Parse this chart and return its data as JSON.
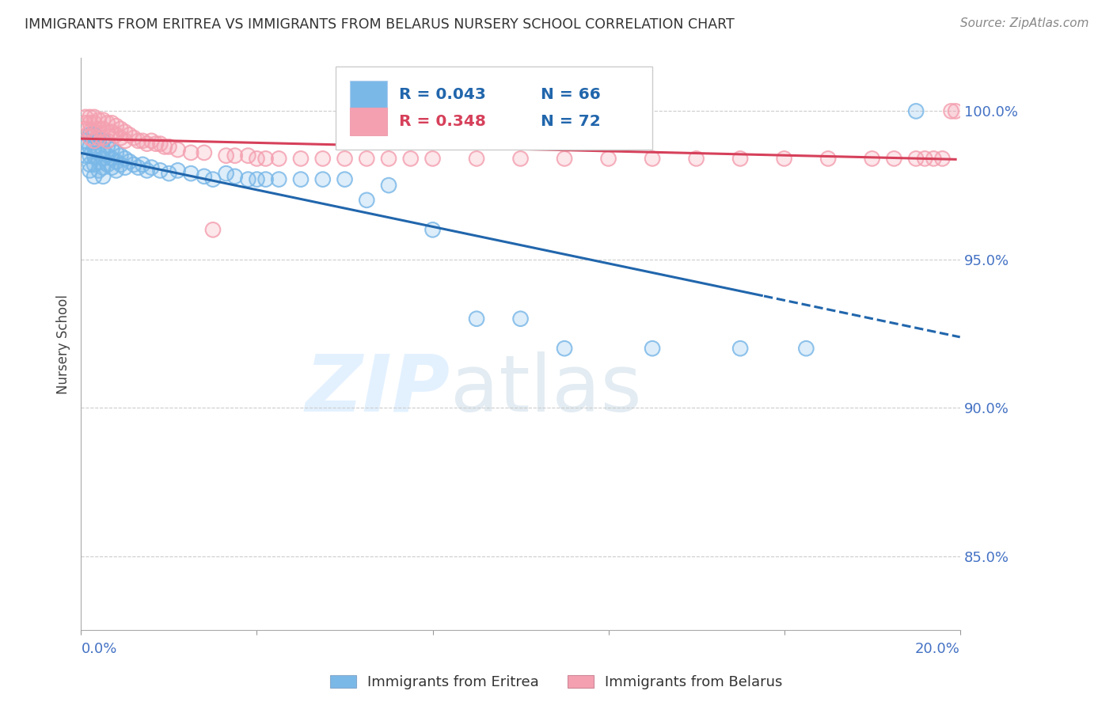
{
  "title": "IMMIGRANTS FROM ERITREA VS IMMIGRANTS FROM BELARUS NURSERY SCHOOL CORRELATION CHART",
  "source": "Source: ZipAtlas.com",
  "ylabel": "Nursery School",
  "ytick_labels": [
    "85.0%",
    "90.0%",
    "95.0%",
    "100.0%"
  ],
  "ytick_values": [
    0.85,
    0.9,
    0.95,
    1.0
  ],
  "xlim": [
    0.0,
    0.2
  ],
  "ylim": [
    0.825,
    1.018
  ],
  "legend_eritrea_label": "Immigrants from Eritrea",
  "legend_belarus_label": "Immigrants from Belarus",
  "color_eritrea": "#7ab8e8",
  "color_belarus": "#f4a0b0",
  "color_line_eritrea": "#2166ac",
  "color_line_belarus": "#d6405a",
  "color_grid": "#cccccc",
  "color_axis_text": "#4472c4",
  "color_r_eritrea": "#2166ac",
  "color_r_belarus": "#d6405a",
  "color_n": "#2166ac",
  "eritrea_x": [
    0.001,
    0.001,
    0.001,
    0.002,
    0.002,
    0.002,
    0.002,
    0.002,
    0.003,
    0.003,
    0.003,
    0.003,
    0.003,
    0.004,
    0.004,
    0.004,
    0.004,
    0.005,
    0.005,
    0.005,
    0.005,
    0.005,
    0.006,
    0.006,
    0.006,
    0.007,
    0.007,
    0.007,
    0.008,
    0.008,
    0.008,
    0.009,
    0.009,
    0.01,
    0.01,
    0.011,
    0.012,
    0.013,
    0.014,
    0.015,
    0.016,
    0.018,
    0.02,
    0.022,
    0.025,
    0.028,
    0.03,
    0.033,
    0.035,
    0.038,
    0.04,
    0.042,
    0.045,
    0.05,
    0.055,
    0.06,
    0.065,
    0.07,
    0.08,
    0.09,
    0.1,
    0.11,
    0.13,
    0.15,
    0.165,
    0.19
  ],
  "eritrea_y": [
    0.99,
    0.988,
    0.985,
    0.992,
    0.988,
    0.985,
    0.982,
    0.98,
    0.992,
    0.988,
    0.985,
    0.982,
    0.978,
    0.99,
    0.986,
    0.983,
    0.98,
    0.99,
    0.987,
    0.984,
    0.981,
    0.978,
    0.988,
    0.985,
    0.982,
    0.987,
    0.984,
    0.981,
    0.986,
    0.983,
    0.98,
    0.985,
    0.982,
    0.984,
    0.981,
    0.983,
    0.982,
    0.981,
    0.982,
    0.98,
    0.981,
    0.98,
    0.979,
    0.98,
    0.979,
    0.978,
    0.977,
    0.979,
    0.978,
    0.977,
    0.977,
    0.977,
    0.977,
    0.977,
    0.977,
    0.977,
    0.97,
    0.975,
    0.96,
    0.93,
    0.93,
    0.92,
    0.92,
    0.92,
    0.92,
    1.0
  ],
  "belarus_x": [
    0.001,
    0.001,
    0.001,
    0.002,
    0.002,
    0.002,
    0.002,
    0.003,
    0.003,
    0.003,
    0.003,
    0.004,
    0.004,
    0.004,
    0.005,
    0.005,
    0.005,
    0.006,
    0.006,
    0.006,
    0.007,
    0.007,
    0.008,
    0.008,
    0.009,
    0.009,
    0.01,
    0.01,
    0.011,
    0.012,
    0.013,
    0.014,
    0.015,
    0.016,
    0.017,
    0.018,
    0.019,
    0.02,
    0.022,
    0.025,
    0.028,
    0.03,
    0.033,
    0.035,
    0.038,
    0.04,
    0.042,
    0.045,
    0.05,
    0.055,
    0.06,
    0.065,
    0.07,
    0.075,
    0.08,
    0.09,
    0.1,
    0.11,
    0.12,
    0.13,
    0.14,
    0.15,
    0.16,
    0.17,
    0.18,
    0.185,
    0.19,
    0.192,
    0.194,
    0.196,
    0.198,
    0.199
  ],
  "belarus_y": [
    0.998,
    0.996,
    0.994,
    0.998,
    0.996,
    0.993,
    0.991,
    0.998,
    0.996,
    0.993,
    0.99,
    0.997,
    0.994,
    0.991,
    0.997,
    0.994,
    0.991,
    0.996,
    0.993,
    0.99,
    0.996,
    0.993,
    0.995,
    0.992,
    0.994,
    0.991,
    0.993,
    0.99,
    0.992,
    0.991,
    0.99,
    0.99,
    0.989,
    0.99,
    0.989,
    0.989,
    0.988,
    0.988,
    0.987,
    0.986,
    0.986,
    0.96,
    0.985,
    0.985,
    0.985,
    0.984,
    0.984,
    0.984,
    0.984,
    0.984,
    0.984,
    0.984,
    0.984,
    0.984,
    0.984,
    0.984,
    0.984,
    0.984,
    0.984,
    0.984,
    0.984,
    0.984,
    0.984,
    0.984,
    0.984,
    0.984,
    0.984,
    0.984,
    0.984,
    0.984,
    1.0,
    1.0
  ],
  "trend_split_x": 0.155
}
